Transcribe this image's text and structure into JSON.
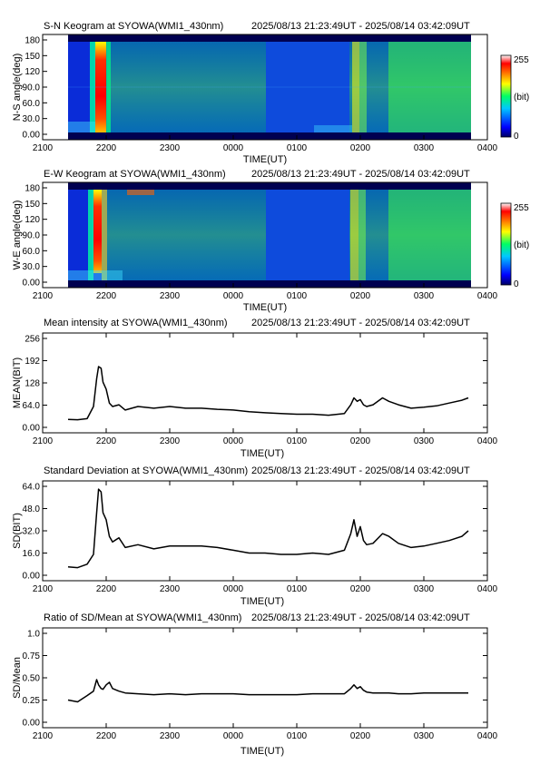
{
  "keograms": [
    {
      "title_left": "S-N Keogram at SYOWA(WMI1_430nm)",
      "title_right": "2025/08/13 21:23:49UT - 2025/08/14 03:42:09UT",
      "ylabel": "N-S angle(deg)",
      "xlabel": "TIME(UT)",
      "yticks": [
        "180",
        "150",
        "120",
        "90.0",
        "60.0",
        "30.0",
        "0.00"
      ],
      "xticks": [
        "2100",
        "2200",
        "2300",
        "0000",
        "0100",
        "0200",
        "0300",
        "0400"
      ],
      "colorbar": {
        "max": "255",
        "unit": "(bit)",
        "min": "0"
      }
    },
    {
      "title_left": "E-W Keogram at SYOWA(WMI1_430nm)",
      "title_right": "2025/08/13 21:23:49UT - 2025/08/14 03:42:09UT",
      "ylabel": "W-E angle(deg)",
      "xlabel": "TIME(UT)",
      "yticks": [
        "180",
        "150",
        "120",
        "90.0",
        "60.0",
        "30.0",
        "0.00"
      ],
      "xticks": [
        "2100",
        "2200",
        "2300",
        "0000",
        "0100",
        "0200",
        "0300",
        "0400"
      ],
      "colorbar": {
        "max": "255",
        "unit": "(bit)",
        "min": "0"
      }
    }
  ],
  "colors": {
    "line": "#000000",
    "colormap": [
      "#000064",
      "#0000ff",
      "#00c8ff",
      "#00ff64",
      "#ffff00",
      "#ff7800",
      "#ff0000",
      "#ffffff"
    ]
  },
  "chart_data": [
    {
      "type": "line",
      "title_left": "Mean intensity at SYOWA(WMI1_430nm)",
      "title_right": "2025/08/13 21:23:49UT - 2025/08/14 03:42:09UT",
      "xlabel": "TIME(UT)",
      "ylabel": "MEAN(BIT)",
      "xlim": [
        21.0,
        28.0
      ],
      "ylim": [
        0,
        256
      ],
      "xticks": [
        "2100",
        "2200",
        "2300",
        "0000",
        "0100",
        "0200",
        "0300",
        "0400"
      ],
      "yticks": [
        "256",
        "192",
        "128",
        "64.0",
        "0.00"
      ],
      "x": [
        21.4,
        21.55,
        21.7,
        21.8,
        21.85,
        21.88,
        21.92,
        21.95,
        22.0,
        22.05,
        22.1,
        22.2,
        22.3,
        22.5,
        22.75,
        23.0,
        23.25,
        23.5,
        23.75,
        24.0,
        24.25,
        24.5,
        24.75,
        25.0,
        25.25,
        25.5,
        25.75,
        25.85,
        25.9,
        25.95,
        26.0,
        26.05,
        26.1,
        26.2,
        26.35,
        26.45,
        26.6,
        26.8,
        27.0,
        27.2,
        27.4,
        27.6,
        27.7
      ],
      "values": [
        23,
        22,
        25,
        60,
        140,
        175,
        170,
        130,
        110,
        70,
        60,
        65,
        50,
        60,
        55,
        60,
        55,
        55,
        52,
        50,
        45,
        42,
        40,
        38,
        38,
        35,
        40,
        65,
        85,
        75,
        80,
        65,
        60,
        65,
        85,
        75,
        65,
        55,
        58,
        62,
        70,
        78,
        85
      ]
    },
    {
      "type": "line",
      "title_left": "Standard Deviation at SYOWA(WMI1_430nm)",
      "title_right": "2025/08/13 21:23:49UT - 2025/08/14 03:42:09UT",
      "xlabel": "TIME(UT)",
      "ylabel": "SD(BIT)",
      "xlim": [
        21.0,
        28.0
      ],
      "ylim": [
        0,
        64
      ],
      "xticks": [
        "2100",
        "2200",
        "2300",
        "0000",
        "0100",
        "0200",
        "0300",
        "0400"
      ],
      "yticks": [
        "64.0",
        "48.0",
        "32.0",
        "16.0",
        "0.00"
      ],
      "x": [
        21.4,
        21.55,
        21.7,
        21.8,
        21.85,
        21.88,
        21.92,
        21.95,
        22.0,
        22.05,
        22.1,
        22.2,
        22.3,
        22.5,
        22.75,
        23.0,
        23.25,
        23.5,
        23.75,
        24.0,
        24.25,
        24.5,
        24.75,
        25.0,
        25.25,
        25.5,
        25.75,
        25.85,
        25.9,
        25.95,
        26.0,
        26.05,
        26.1,
        26.2,
        26.35,
        26.45,
        26.6,
        26.8,
        27.0,
        27.2,
        27.4,
        27.6,
        27.7
      ],
      "values": [
        6,
        5.5,
        8,
        15,
        45,
        62,
        60,
        45,
        40,
        28,
        24,
        27,
        20,
        22,
        19,
        21,
        21,
        21,
        20,
        18,
        16,
        16,
        15,
        15,
        16,
        15,
        18,
        30,
        40,
        28,
        35,
        25,
        22,
        23,
        30,
        28,
        23,
        20,
        21,
        23,
        25,
        28,
        32
      ]
    },
    {
      "type": "line",
      "title_left": "Ratio of SD/Mean at SYOWA(WMI1_430nm)",
      "title_right": "2025/08/13 21:23:49UT - 2025/08/14 03:42:09UT",
      "xlabel": "TIME(UT)",
      "ylabel": "SD/Mean",
      "xlim": [
        21.0,
        28.0
      ],
      "ylim": [
        0,
        1.0
      ],
      "xticks": [
        "2100",
        "2200",
        "2300",
        "0000",
        "0100",
        "0200",
        "0300",
        "0400"
      ],
      "yticks": [
        "1.0",
        "0.75",
        "0.50",
        "0.25",
        "0.00"
      ],
      "x": [
        21.4,
        21.55,
        21.7,
        21.8,
        21.85,
        21.88,
        21.92,
        21.95,
        22.0,
        22.05,
        22.1,
        22.2,
        22.3,
        22.5,
        22.75,
        23.0,
        23.25,
        23.5,
        23.75,
        24.0,
        24.25,
        24.5,
        24.75,
        25.0,
        25.25,
        25.5,
        25.75,
        25.85,
        25.9,
        25.95,
        26.0,
        26.05,
        26.1,
        26.2,
        26.35,
        26.45,
        26.6,
        26.8,
        27.0,
        27.2,
        27.4,
        27.6,
        27.7
      ],
      "values": [
        0.25,
        0.23,
        0.3,
        0.35,
        0.48,
        0.42,
        0.38,
        0.37,
        0.42,
        0.45,
        0.38,
        0.35,
        0.33,
        0.32,
        0.31,
        0.32,
        0.31,
        0.32,
        0.32,
        0.32,
        0.31,
        0.31,
        0.31,
        0.31,
        0.32,
        0.32,
        0.32,
        0.38,
        0.42,
        0.38,
        0.4,
        0.36,
        0.34,
        0.33,
        0.33,
        0.33,
        0.32,
        0.32,
        0.33,
        0.33,
        0.33,
        0.33,
        0.33
      ]
    }
  ]
}
